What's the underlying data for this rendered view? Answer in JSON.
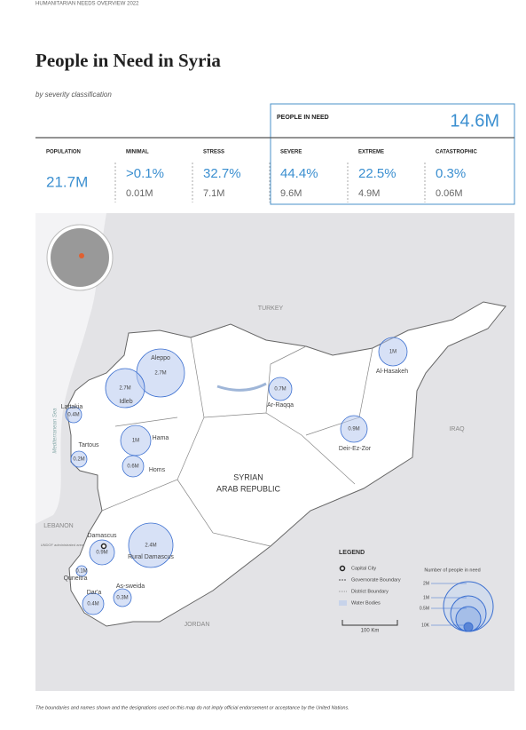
{
  "header": {
    "top_label": "HUMANITARIAN NEEDS OVERVIEW 2022",
    "title": "People in Need in Syria",
    "subtitle": "by severity classification"
  },
  "pin": {
    "label": "PEOPLE IN NEED",
    "value": "14.6M"
  },
  "stats": [
    {
      "label": "POPULATION",
      "value": "21.7M"
    },
    {
      "label": "MINIMAL",
      "value": ">0.1%",
      "sub": "0.01M"
    },
    {
      "label": "STRESS",
      "value": "32.7%",
      "sub": "7.1M"
    },
    {
      "label": "SEVERE",
      "value": "44.4%",
      "sub": "9.6M"
    },
    {
      "label": "EXTREME",
      "value": "22.5%",
      "sub": "4.9M"
    },
    {
      "label": "CATASTROPHIC",
      "value": "0.3%",
      "sub": "0.06M"
    }
  ],
  "map": {
    "countries": [
      "TURKEY",
      "IRAQ",
      "LEBANON",
      "JORDAN"
    ],
    "sea": "Mediterranean Sea",
    "country_name": [
      "SYRIAN",
      "ARAB REPUBLIC"
    ],
    "undof": "UNDOF administrated area",
    "governorates": [
      {
        "name": "Aleppo",
        "value": "2.7M"
      },
      {
        "name": "Idleb",
        "value": "2.7M"
      },
      {
        "name": "Lattakia",
        "value": "0.4M"
      },
      {
        "name": "Tartous",
        "value": "0.2M"
      },
      {
        "name": "Hama",
        "value": "1M"
      },
      {
        "name": "Homs",
        "value": "0.6M"
      },
      {
        "name": "Al-Hasakeh",
        "value": "1M"
      },
      {
        "name": "Ar-Raqqa",
        "value": "0.7M"
      },
      {
        "name": "Deir-Ez-Zor",
        "value": "0.9M"
      },
      {
        "name": "Damascus",
        "value": "0.9M"
      },
      {
        "name": "Rural Damascus",
        "value": "2.4M"
      },
      {
        "name": "Quneitra",
        "value": "0.1M"
      },
      {
        "name": "As-sweida",
        "value": "0.3M"
      },
      {
        "name": "Dar'a",
        "value": "0.4M"
      }
    ]
  },
  "legend": {
    "title": "LEGEND",
    "items": [
      "Capital City",
      "Governorate Boundary",
      "District Boundary",
      "Water Bodies"
    ],
    "scale": "100 Km",
    "bubble_title": "Number of people in need",
    "bubble_sizes": [
      "2M",
      "1M",
      "0.5M",
      "10K"
    ]
  },
  "footer": "The boundaries and names shown and the designations used on this map do not imply official endorsement or acceptance by the United Nations."
}
